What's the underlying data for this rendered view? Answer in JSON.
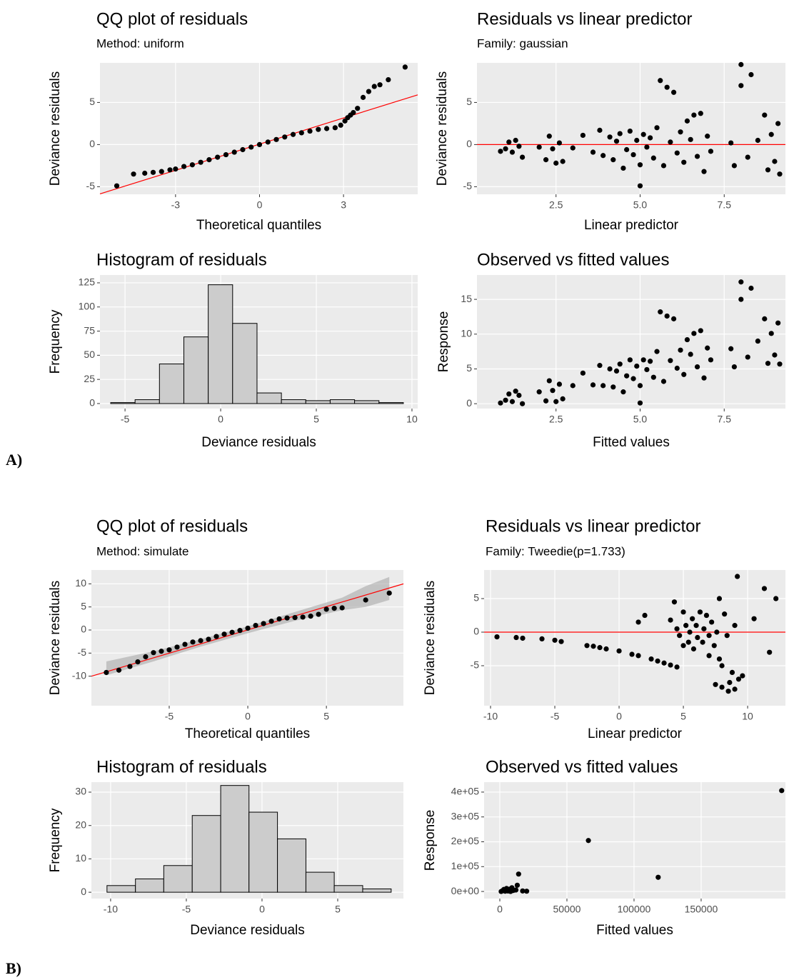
{
  "panel_labels": [
    "A)",
    "B)"
  ],
  "chart_data": [
    {
      "type": "qq",
      "title": "QQ plot of residuals",
      "subtitle": "Method: uniform",
      "xlabel": "Theoretical quantiles",
      "ylabel": "Deviance residuals",
      "xlim": [
        -5.7,
        5.65
      ],
      "ylim": [
        -5.9,
        9.7
      ],
      "xticks": [
        -3,
        0,
        3
      ],
      "yticks": [
        -5,
        0,
        5
      ],
      "grid": true,
      "x": [
        -5.1,
        -4.5,
        -4.1,
        -3.8,
        -3.5,
        -3.2,
        -3.0,
        -2.7,
        -2.4,
        -2.1,
        -1.8,
        -1.5,
        -1.2,
        -0.9,
        -0.6,
        -0.3,
        0,
        0.3,
        0.6,
        0.9,
        1.2,
        1.5,
        1.8,
        2.1,
        2.4,
        2.7,
        2.9,
        3.05,
        3.15,
        3.25,
        3.35,
        3.5,
        3.7,
        3.9,
        4.1,
        4.3,
        4.6,
        5.2
      ],
      "y": [
        -4.9,
        -3.5,
        -3.4,
        -3.3,
        -3.2,
        -3.0,
        -2.9,
        -2.6,
        -2.4,
        -2.1,
        -1.8,
        -1.5,
        -1.2,
        -0.9,
        -0.6,
        -0.3,
        0,
        0.3,
        0.6,
        0.9,
        1.2,
        1.4,
        1.6,
        1.8,
        1.9,
        2.0,
        2.3,
        2.8,
        3.2,
        3.5,
        3.8,
        4.3,
        5.6,
        6.3,
        6.9,
        7.1,
        7.7,
        9.2
      ],
      "ref_line": {
        "x": [
          -5.7,
          5.65
        ],
        "y": [
          -5.85,
          5.9
        ]
      },
      "point_color": "#000000",
      "line_color": "#ff0000"
    },
    {
      "type": "scatter",
      "title": "Residuals vs linear predictor",
      "subtitle": "Family: gaussian",
      "xlabel": "Linear predictor",
      "ylabel": "Deviance residuals",
      "xlim": [
        0.15,
        9.32
      ],
      "ylim": [
        -5.9,
        9.7
      ],
      "xticks": [
        2.5,
        {
          "value": 5,
          "label": "5.0"
        },
        7.5
      ],
      "yticks": [
        -5,
        0,
        5
      ],
      "grid": true,
      "x": [
        0.85,
        1.0,
        1.1,
        1.2,
        1.3,
        1.4,
        1.5,
        2.0,
        2.2,
        2.3,
        2.4,
        2.5,
        2.6,
        2.7,
        3.0,
        3.3,
        3.6,
        3.8,
        3.9,
        4.1,
        4.2,
        4.3,
        4.4,
        4.5,
        4.6,
        4.7,
        4.8,
        4.9,
        5.0,
        5.0,
        5.1,
        5.2,
        5.3,
        5.4,
        5.5,
        5.6,
        5.7,
        5.8,
        5.9,
        6.0,
        6.1,
        6.2,
        6.3,
        6.4,
        6.5,
        6.6,
        6.7,
        6.8,
        6.9,
        7.0,
        7.1,
        7.7,
        7.8,
        8.0,
        8.0,
        8.2,
        8.3,
        8.5,
        8.7,
        8.8,
        8.9,
        9.0,
        9.1,
        9.15
      ],
      "y": [
        -0.8,
        -0.5,
        0.3,
        -0.9,
        0.5,
        -0.2,
        -1.5,
        -0.3,
        -1.8,
        1.0,
        -0.5,
        -2.2,
        0.2,
        -2.0,
        -0.4,
        1.1,
        -0.9,
        1.7,
        -1.3,
        0.9,
        -1.8,
        0.4,
        1.3,
        -2.8,
        -0.6,
        1.6,
        -1.2,
        0.5,
        -4.9,
        -2.4,
        1.2,
        -0.3,
        0.8,
        -1.6,
        2.0,
        7.6,
        -2.5,
        6.8,
        0.3,
        6.2,
        -1.0,
        1.5,
        -2.1,
        2.8,
        0.6,
        3.5,
        -1.4,
        3.7,
        -3.2,
        1.0,
        -0.8,
        0.2,
        -2.5,
        9.5,
        7.0,
        -1.5,
        8.3,
        0.5,
        3.5,
        -3.0,
        1.2,
        -2.0,
        2.5,
        -3.5
      ],
      "hline": 0,
      "point_color": "#000000",
      "line_color": "#ff0000"
    },
    {
      "type": "histogram",
      "title": "Histogram of residuals",
      "xlabel": "Deviance residuals",
      "ylabel": "Frequency",
      "xlim": [
        -6.31,
        10.3
      ],
      "ylim": [
        -5.2,
        133.1
      ],
      "xticks": [
        -5,
        0,
        5,
        10
      ],
      "yticks": [
        0,
        25,
        50,
        75,
        100,
        125
      ],
      "grid": true,
      "bins": [
        -5.75,
        -4.475,
        -3.2,
        -1.925,
        -0.65,
        0.625,
        1.9,
        3.175,
        4.45,
        5.725,
        7.0,
        8.275,
        9.55
      ],
      "counts": [
        1,
        4,
        41,
        69,
        123,
        83,
        11,
        4,
        3,
        4,
        3,
        1
      ],
      "bar_color": "#cccccc"
    },
    {
      "type": "scatter",
      "title": "Observed vs fitted values",
      "xlabel": "Fitted values",
      "ylabel": "Response",
      "xlim": [
        0.15,
        9.32
      ],
      "ylim": [
        -0.7,
        18.5
      ],
      "xticks": [
        2.5,
        {
          "value": 5,
          "label": "5.0"
        },
        7.5
      ],
      "yticks": [
        0,
        5,
        10,
        15
      ],
      "grid": true,
      "x": [
        0.85,
        1.0,
        1.1,
        1.2,
        1.3,
        1.4,
        1.5,
        2.0,
        2.2,
        2.3,
        2.4,
        2.5,
        2.6,
        2.7,
        3.0,
        3.3,
        3.6,
        3.8,
        3.9,
        4.1,
        4.2,
        4.3,
        4.4,
        4.5,
        4.6,
        4.7,
        4.8,
        4.9,
        5.0,
        5.0,
        5.1,
        5.2,
        5.3,
        5.4,
        5.5,
        5.6,
        5.7,
        5.8,
        5.9,
        6.0,
        6.1,
        6.2,
        6.3,
        6.4,
        6.5,
        6.6,
        6.7,
        6.8,
        6.9,
        7.0,
        7.1,
        7.7,
        7.8,
        8.0,
        8.0,
        8.2,
        8.3,
        8.5,
        8.7,
        8.8,
        8.9,
        9.0,
        9.1,
        9.15
      ],
      "y": [
        0.1,
        0.5,
        1.4,
        0.3,
        1.8,
        1.2,
        0,
        1.7,
        0.4,
        3.3,
        1.9,
        0.3,
        2.8,
        0.7,
        2.6,
        4.4,
        2.7,
        5.5,
        2.6,
        5.0,
        2.4,
        4.7,
        5.7,
        1.7,
        4.0,
        6.3,
        3.6,
        5.4,
        0.1,
        2.6,
        6.3,
        4.9,
        6.1,
        3.8,
        7.5,
        13.2,
        3.2,
        12.6,
        6.2,
        12.2,
        5.1,
        7.7,
        4.2,
        9.2,
        7.1,
        10.1,
        5.3,
        10.5,
        3.7,
        8.0,
        6.3,
        7.9,
        5.3,
        17.5,
        15.0,
        6.7,
        16.6,
        9.0,
        12.2,
        5.8,
        10.1,
        7.0,
        11.6,
        5.7
      ],
      "point_color": "#000000"
    },
    {
      "type": "qq",
      "title": "QQ plot of residuals",
      "subtitle": "Method: simulate",
      "xlabel": "Theoretical quantiles",
      "ylabel": "Deviance residuals",
      "xlim": [
        -9.95,
        9.9
      ],
      "ylim": [
        -16.4,
        13.0
      ],
      "xticks": [
        -5,
        0,
        5
      ],
      "yticks": [
        -10,
        -5,
        0,
        5,
        10
      ],
      "grid": true,
      "x": [
        -9,
        -8.2,
        -7.5,
        -7.0,
        -6.5,
        -6.0,
        -5.5,
        -5.0,
        -4.5,
        -4.0,
        -3.5,
        -3.0,
        -2.5,
        -2.0,
        -1.5,
        -1.0,
        -0.5,
        0,
        0.5,
        1.0,
        1.5,
        2.0,
        2.5,
        3.0,
        3.5,
        4.0,
        4.5,
        5.0,
        5.5,
        6.0,
        7.5,
        9.0
      ],
      "y": [
        -9.2,
        -8.7,
        -7.9,
        -6.9,
        -5.8,
        -4.9,
        -4.6,
        -4.3,
        -3.7,
        -3.1,
        -2.6,
        -2.3,
        -2.0,
        -1.4,
        -0.9,
        -0.5,
        -0.1,
        0.4,
        1.0,
        1.4,
        1.9,
        2.4,
        2.6,
        2.7,
        2.8,
        3.0,
        3.4,
        4.5,
        4.7,
        4.8,
        6.5,
        8.0
      ],
      "band": {
        "x": [
          -9,
          -6,
          -3,
          0,
          3,
          6,
          7.5,
          9
        ],
        "lower": [
          -9.8,
          -6.8,
          -3.6,
          -0.7,
          2.0,
          4.3,
          5.0,
          6.5
        ],
        "upper": [
          -6.8,
          -4.6,
          -2.0,
          0.8,
          3.9,
          7.0,
          9.5,
          11.5
        ]
      },
      "ref_line": {
        "x": [
          -9.95,
          9.9
        ],
        "y": [
          -10,
          10
        ]
      },
      "point_color": "#000000",
      "line_color": "#ff0000",
      "band_color": "#a9a9a9"
    },
    {
      "type": "scatter",
      "title": "Residuals vs linear predictor",
      "subtitle": "Family: Tweedie(p=1.733)",
      "xlabel": "Linear predictor",
      "ylabel": "Deviance residuals",
      "xlim": [
        -10.5,
        12.94
      ],
      "ylim": [
        -10.96,
        9.26
      ],
      "xticks": [
        -10,
        -5,
        0,
        5,
        10
      ],
      "yticks": [
        -5,
        0,
        5
      ],
      "grid": true,
      "x": [
        -9.5,
        -8,
        -7.5,
        -6,
        -5,
        -4.5,
        -2.5,
        -2,
        -1.5,
        -1,
        0,
        1,
        1.5,
        2.5,
        3,
        3.5,
        4,
        4.5,
        1.5,
        2,
        4,
        4.3,
        4.5,
        4.7,
        5,
        5,
        5.2,
        5.4,
        5.5,
        5.7,
        5.8,
        6,
        6.1,
        6.3,
        6.5,
        6.6,
        6.8,
        7,
        7,
        7.2,
        7.4,
        7.6,
        7.8,
        7.8,
        8,
        8.2,
        8.4,
        8.6,
        8.8,
        9,
        9.2,
        9.3,
        9.6,
        9,
        10.5,
        11.3,
        11.7,
        12.2,
        7.5,
        8,
        8.5
      ],
      "y": [
        -0.7,
        -0.8,
        -0.9,
        -1.0,
        -1.2,
        -1.4,
        -2.0,
        -2.1,
        -2.3,
        -2.5,
        -2.8,
        -3.3,
        -3.5,
        -4.0,
        -4.3,
        -4.6,
        -4.9,
        -5.2,
        1.5,
        2.5,
        1.8,
        4.5,
        0.5,
        -0.5,
        -2.0,
        3.0,
        1.0,
        -1.5,
        0.0,
        2.0,
        -2.5,
        1.0,
        -0.8,
        3.0,
        -1.5,
        0.5,
        2.5,
        -0.5,
        -3.5,
        1.5,
        -2.0,
        0.0,
        5.0,
        -4.0,
        -5.0,
        2.7,
        -0.5,
        -7.5,
        -6.0,
        -8.5,
        8.3,
        -7.0,
        -6.5,
        1.0,
        2.0,
        6.5,
        -3.0,
        5.0,
        -7.8,
        -8.2,
        -8.8
      ],
      "hline": 0,
      "point_color": "#000000",
      "line_color": "#ff0000"
    },
    {
      "type": "histogram",
      "title": "Histogram of residuals",
      "xlabel": "Deviance residuals",
      "ylabel": "Frequency",
      "xlim": [
        -11.27,
        9.34
      ],
      "ylim": [
        -1.9,
        33
      ],
      "xticks": [
        -10,
        -5,
        0,
        5
      ],
      "yticks": [
        0,
        10,
        20,
        30
      ],
      "grid": true,
      "bins": [
        -10.24,
        -8.36,
        -6.49,
        -4.61,
        -2.73,
        -0.86,
        1.02,
        2.9,
        4.77,
        6.65,
        8.53
      ],
      "counts": [
        2,
        4,
        8,
        23,
        32,
        24,
        16,
        6,
        2,
        1
      ],
      "bar_color": "#cccccc"
    },
    {
      "type": "scatter",
      "title": "Observed vs fitted values",
      "xlabel": "Fitted values",
      "ylabel": "Response",
      "xlim": [
        -11700,
        212800
      ],
      "ylim": [
        -28600,
        440000
      ],
      "xticks": [
        0,
        50000,
        100000,
        150000
      ],
      "yticks": [
        {
          "value": 0,
          "label": "0e+00"
        },
        {
          "value": 100000,
          "label": "1e+05"
        },
        {
          "value": 200000,
          "label": "2e+05"
        },
        {
          "value": 300000,
          "label": "3e+05"
        },
        {
          "value": 400000,
          "label": "4e+05"
        }
      ],
      "grid": true,
      "x": [
        1000,
        2000,
        3000,
        4000,
        5000,
        6000,
        7000,
        8000,
        9000,
        10000,
        12000,
        13000,
        14000,
        17000,
        20000,
        66000,
        118000,
        210000
      ],
      "y": [
        0,
        3000,
        8000,
        1000,
        12000,
        2000,
        9000,
        0,
        15000,
        4000,
        6000,
        25000,
        70000,
        2000,
        1000,
        205000,
        57000,
        406000
      ],
      "point_color": "#000000"
    }
  ]
}
